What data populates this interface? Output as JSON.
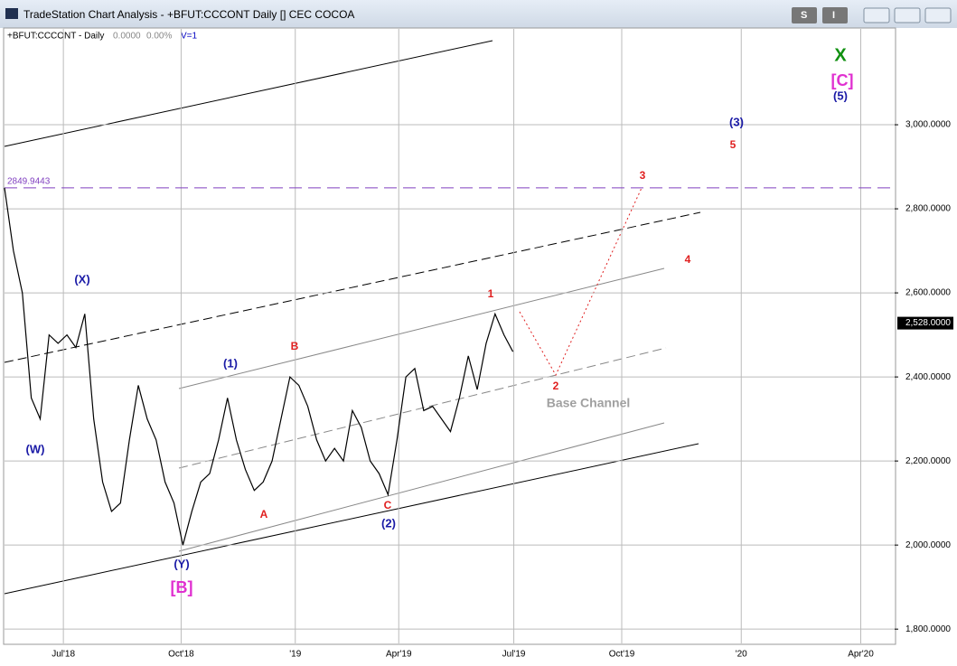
{
  "window": {
    "title": "TradeStation Chart Analysis - +BFUT:CCCONT Daily [] CEC COCOA",
    "buttons": [
      "S",
      "I"
    ]
  },
  "header": {
    "symbol": "+BFUT:CCCONT - Daily",
    "change": "0.0000",
    "change_pct": "0.00%",
    "volume": "V=1"
  },
  "chart_data": {
    "type": "line",
    "color": "#000000",
    "x": [
      0,
      1,
      2,
      3,
      4,
      5,
      6,
      7,
      8,
      9,
      10,
      11,
      12,
      13,
      14,
      15,
      16,
      17,
      18,
      19,
      20,
      21,
      22,
      23,
      24,
      25,
      26,
      27,
      28,
      29,
      30,
      31,
      32,
      33,
      34,
      35,
      36,
      37,
      38,
      39,
      40,
      41,
      42,
      43,
      44,
      45,
      46,
      47,
      48,
      49,
      50,
      51,
      52,
      53,
      54,
      55,
      56,
      57
    ],
    "values": [
      2850,
      2700,
      2600,
      2350,
      2300,
      2500,
      2480,
      2500,
      2470,
      2550,
      2300,
      2150,
      2080,
      2100,
      2250,
      2380,
      2300,
      2250,
      2150,
      2100,
      2000,
      2080,
      2150,
      2170,
      2250,
      2350,
      2250,
      2180,
      2130,
      2150,
      2200,
      2300,
      2400,
      2380,
      2330,
      2250,
      2200,
      2230,
      2200,
      2320,
      2280,
      2200,
      2170,
      2120,
      2250,
      2400,
      2420,
      2320,
      2330,
      2300,
      2270,
      2350,
      2450,
      2370,
      2480,
      2550,
      2500,
      2460
    ],
    "xlim": [
      0,
      99.8
    ],
    "xticks": [
      {
        "value": 6.6,
        "label": "Jul'18"
      },
      {
        "value": 19.8,
        "label": "Oct'18"
      },
      {
        "value": 32.6,
        "label": "'19"
      },
      {
        "value": 44.2,
        "label": "Apr'19"
      },
      {
        "value": 57.1,
        "label": "Jul'19"
      },
      {
        "value": 69.2,
        "label": "Oct'19"
      },
      {
        "value": 82.6,
        "label": "'20"
      },
      {
        "value": 96.0,
        "label": "Apr'20"
      }
    ],
    "ylim": [
      1766,
      3228
    ],
    "yticks": [
      {
        "value": 1800,
        "label": "1,800.0000"
      },
      {
        "value": 2000,
        "label": "2,000.0000"
      },
      {
        "value": 2200,
        "label": "2,200.0000"
      },
      {
        "value": 2400,
        "label": "2,400.0000"
      },
      {
        "value": 2600,
        "label": "2,600.0000"
      },
      {
        "value": 2800,
        "label": "2,800.0000"
      },
      {
        "value": 3000,
        "label": "3,000.0000"
      }
    ],
    "grid": true,
    "reference_line": 2849.9443,
    "last_price": {
      "value": 2528,
      "label": "2,528.0000"
    },
    "annotations": [
      {
        "text": "(X)",
        "color": "#1a1aa6"
      },
      {
        "text": "(W)",
        "color": "#1a1aa6"
      },
      {
        "text": "(Y)",
        "color": "#1a1aa6"
      },
      {
        "text": "[B]",
        "color": "#e030d0"
      },
      {
        "text": "(1)",
        "color": "#1a1aa6"
      },
      {
        "text": "B",
        "color": "#e02020"
      },
      {
        "text": "A",
        "color": "#e02020"
      },
      {
        "text": "C",
        "color": "#e02020"
      },
      {
        "text": "(2)",
        "color": "#1a1aa6"
      },
      {
        "text": "1",
        "color": "#e02020"
      },
      {
        "text": "2",
        "color": "#e02020"
      },
      {
        "text": "3",
        "color": "#e02020"
      },
      {
        "text": "4",
        "color": "#e02020"
      },
      {
        "text": "5",
        "color": "#e02020"
      },
      {
        "text": "(3)",
        "color": "#1a1aa6"
      },
      {
        "text": "X",
        "color": "#109010"
      },
      {
        "text": "[C]",
        "color": "#e030d0"
      },
      {
        "text": "(5)",
        "color": "#1a1aa6"
      },
      {
        "text": "Base Channel",
        "color": "#a0a0a0"
      }
    ]
  }
}
